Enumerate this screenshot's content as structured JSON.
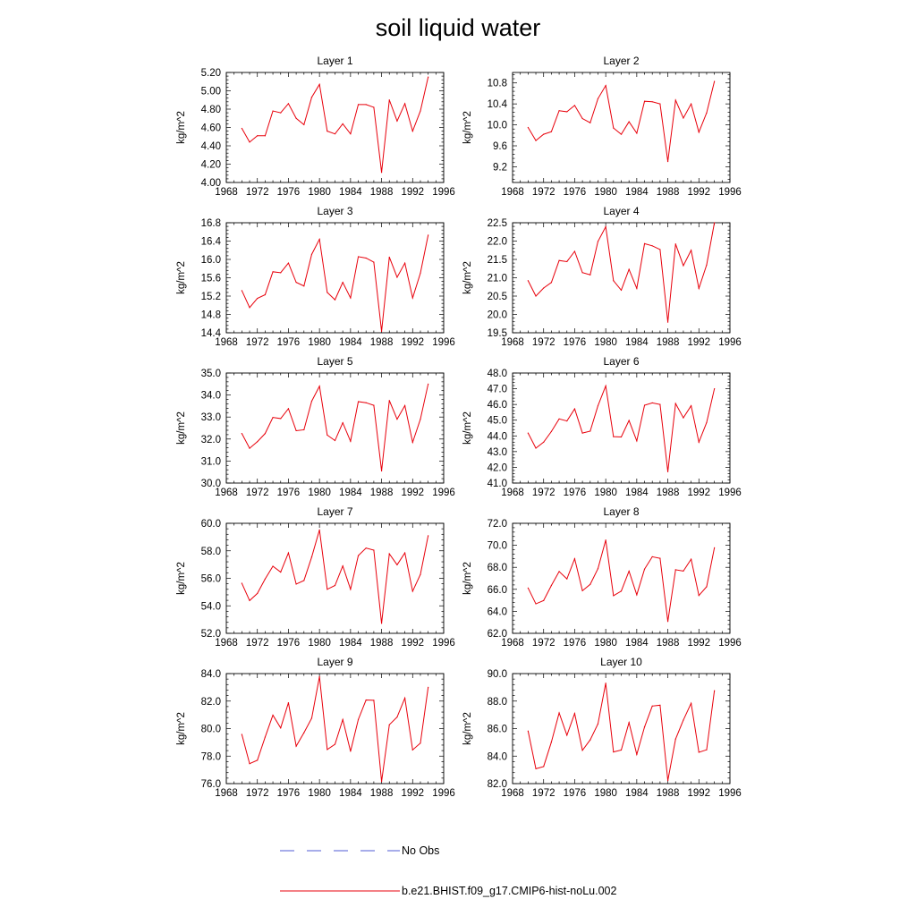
{
  "title": "soil liquid water",
  "legend": {
    "items": [
      {
        "label": "No Obs",
        "color": "#4f5bd5",
        "dash": true
      },
      {
        "label": "b.e21.BHIST.f09_g17.CMIP6-hist-noLu.002",
        "color": "#e8000b",
        "dash": false
      }
    ]
  },
  "colors": {
    "series": "#e8000b",
    "obs": "#4f5bd5"
  },
  "chart_data": [
    {
      "type": "line",
      "title": "Layer 1",
      "ylabel": "kg/m^2",
      "xlim": [
        1968,
        1996
      ],
      "xticks": [
        1968,
        1972,
        1976,
        1980,
        1984,
        1988,
        1992,
        1996
      ],
      "ylim": [
        4.0,
        5.2
      ],
      "yticks": [
        "4.00",
        "4.20",
        "4.40",
        "4.60",
        "4.80",
        "5.00",
        "5.20"
      ],
      "x": [
        1970,
        1971,
        1972,
        1973,
        1974,
        1975,
        1976,
        1977,
        1978,
        1979,
        1980,
        1981,
        1982,
        1983,
        1984,
        1985,
        1986,
        1987,
        1988,
        1989,
        1990,
        1991,
        1992,
        1993,
        1994
      ],
      "series": [
        {
          "name": "b.e21.BHIST.f09_g17.CMIP6-hist-noLu.002",
          "values": [
            4.59,
            4.44,
            4.51,
            4.51,
            4.78,
            4.76,
            4.86,
            4.7,
            4.63,
            4.93,
            5.07,
            4.56,
            4.53,
            4.64,
            4.53,
            4.85,
            4.85,
            4.82,
            4.11,
            4.9,
            4.67,
            4.86,
            4.56,
            4.78,
            5.15
          ]
        }
      ]
    },
    {
      "type": "line",
      "title": "Layer 2",
      "ylabel": "kg/m^2",
      "xlim": [
        1968,
        1996
      ],
      "xticks": [
        1968,
        1972,
        1976,
        1980,
        1984,
        1988,
        1992,
        1996
      ],
      "ylim": [
        8.9,
        11.0
      ],
      "yticks": [
        "9.2",
        "9.6",
        "10.0",
        "10.4",
        "10.8"
      ],
      "x": [
        1970,
        1971,
        1972,
        1973,
        1974,
        1975,
        1976,
        1977,
        1978,
        1979,
        1980,
        1981,
        1982,
        1983,
        1984,
        1985,
        1986,
        1987,
        1988,
        1989,
        1990,
        1991,
        1992,
        1993,
        1994
      ],
      "series": [
        {
          "name": "b.e21.BHIST.f09_g17.CMIP6-hist-noLu.002",
          "values": [
            9.95,
            9.7,
            9.82,
            9.87,
            10.27,
            10.25,
            10.37,
            10.12,
            10.04,
            10.5,
            10.75,
            9.94,
            9.82,
            10.06,
            9.84,
            10.45,
            10.44,
            10.4,
            9.3,
            10.47,
            10.13,
            10.4,
            9.86,
            10.23,
            10.83
          ]
        }
      ]
    },
    {
      "type": "line",
      "title": "Layer 3",
      "ylabel": "kg/m^2",
      "xlim": [
        1968,
        1996
      ],
      "xticks": [
        1968,
        1972,
        1976,
        1980,
        1984,
        1988,
        1992,
        1996
      ],
      "ylim": [
        14.4,
        16.8
      ],
      "yticks": [
        "14.4",
        "14.8",
        "15.2",
        "15.6",
        "16.0",
        "16.4",
        "16.8"
      ],
      "x": [
        1970,
        1971,
        1972,
        1973,
        1974,
        1975,
        1976,
        1977,
        1978,
        1979,
        1980,
        1981,
        1982,
        1983,
        1984,
        1985,
        1986,
        1987,
        1988,
        1989,
        1990,
        1991,
        1992,
        1993,
        1994
      ],
      "series": [
        {
          "name": "b.e21.BHIST.f09_g17.CMIP6-hist-noLu.002",
          "values": [
            15.32,
            14.95,
            15.15,
            15.23,
            15.73,
            15.71,
            15.92,
            15.5,
            15.42,
            16.11,
            16.44,
            15.28,
            15.12,
            15.5,
            15.16,
            16.06,
            16.03,
            15.94,
            14.43,
            16.05,
            15.61,
            15.92,
            15.16,
            15.7,
            16.53
          ]
        }
      ]
    },
    {
      "type": "line",
      "title": "Layer 4",
      "ylabel": "kg/m^2",
      "xlim": [
        1968,
        1996
      ],
      "xticks": [
        1968,
        1972,
        1976,
        1980,
        1984,
        1988,
        1992,
        1996
      ],
      "ylim": [
        19.5,
        22.5
      ],
      "yticks": [
        "19.5",
        "20.0",
        "20.5",
        "21.0",
        "21.5",
        "22.0",
        "22.5"
      ],
      "x": [
        1970,
        1971,
        1972,
        1973,
        1974,
        1975,
        1976,
        1977,
        1978,
        1979,
        1980,
        1981,
        1982,
        1983,
        1984,
        1985,
        1986,
        1987,
        1988,
        1989,
        1990,
        1991,
        1992,
        1993,
        1994
      ],
      "series": [
        {
          "name": "b.e21.BHIST.f09_g17.CMIP6-hist-noLu.002",
          "values": [
            20.92,
            20.5,
            20.72,
            20.87,
            21.47,
            21.44,
            21.72,
            21.14,
            21.08,
            21.99,
            22.39,
            20.92,
            20.66,
            21.23,
            20.71,
            21.93,
            21.87,
            21.77,
            19.79,
            21.92,
            21.33,
            21.75,
            20.71,
            21.35,
            22.5
          ]
        }
      ]
    },
    {
      "type": "line",
      "title": "Layer 5",
      "ylabel": "kg/m^2",
      "xlim": [
        1968,
        1996
      ],
      "xticks": [
        1968,
        1972,
        1976,
        1980,
        1984,
        1988,
        1992,
        1996
      ],
      "ylim": [
        30.0,
        35.0
      ],
      "yticks": [
        "30.0",
        "31.0",
        "32.0",
        "33.0",
        "34.0",
        "35.0"
      ],
      "x": [
        1970,
        1971,
        1972,
        1973,
        1974,
        1975,
        1976,
        1977,
        1978,
        1979,
        1980,
        1981,
        1982,
        1983,
        1984,
        1985,
        1986,
        1987,
        1988,
        1989,
        1990,
        1991,
        1992,
        1993,
        1994
      ],
      "series": [
        {
          "name": "b.e21.BHIST.f09_g17.CMIP6-hist-noLu.002",
          "values": [
            32.25,
            31.58,
            31.88,
            32.25,
            32.98,
            32.93,
            33.38,
            32.38,
            32.42,
            33.72,
            34.4,
            32.18,
            31.93,
            32.74,
            31.9,
            33.7,
            33.65,
            33.53,
            30.55,
            33.75,
            32.9,
            33.52,
            31.85,
            32.9,
            34.5
          ]
        }
      ]
    },
    {
      "type": "line",
      "title": "Layer 6",
      "ylabel": "kg/m^2",
      "xlim": [
        1968,
        1996
      ],
      "xticks": [
        1968,
        1972,
        1976,
        1980,
        1984,
        1988,
        1992,
        1996
      ],
      "ylim": [
        41.0,
        48.0
      ],
      "yticks": [
        "41.0",
        "42.0",
        "43.0",
        "44.0",
        "45.0",
        "46.0",
        "47.0",
        "48.0"
      ],
      "x": [
        1970,
        1971,
        1972,
        1973,
        1974,
        1975,
        1976,
        1977,
        1978,
        1979,
        1980,
        1981,
        1982,
        1983,
        1984,
        1985,
        1986,
        1987,
        1988,
        1989,
        1990,
        1991,
        1992,
        1993,
        1994
      ],
      "series": [
        {
          "name": "b.e21.BHIST.f09_g17.CMIP6-hist-noLu.002",
          "values": [
            44.18,
            43.22,
            43.6,
            44.28,
            45.08,
            44.95,
            45.72,
            44.18,
            44.3,
            45.92,
            47.18,
            43.95,
            43.93,
            44.98,
            43.68,
            45.95,
            46.1,
            46.0,
            41.72,
            46.06,
            45.15,
            45.92,
            43.6,
            44.85,
            47.0
          ]
        }
      ]
    },
    {
      "type": "line",
      "title": "Layer 7",
      "ylabel": "kg/m^2",
      "xlim": [
        1968,
        1996
      ],
      "xticks": [
        1968,
        1972,
        1976,
        1980,
        1984,
        1988,
        1992,
        1996
      ],
      "ylim": [
        52.0,
        60.0
      ],
      "yticks": [
        "52.0",
        "54.0",
        "56.0",
        "58.0",
        "60.0"
      ],
      "x": [
        1970,
        1971,
        1972,
        1973,
        1974,
        1975,
        1976,
        1977,
        1978,
        1979,
        1980,
        1981,
        1982,
        1983,
        1984,
        1985,
        1986,
        1987,
        1988,
        1989,
        1990,
        1991,
        1992,
        1993,
        1994
      ],
      "series": [
        {
          "name": "b.e21.BHIST.f09_g17.CMIP6-hist-noLu.002",
          "values": [
            55.64,
            54.38,
            54.9,
            55.95,
            56.88,
            56.45,
            57.85,
            55.58,
            55.84,
            57.55,
            59.52,
            55.2,
            55.48,
            56.9,
            55.2,
            57.65,
            58.2,
            58.05,
            52.72,
            57.78,
            56.98,
            57.85,
            55.06,
            56.28,
            59.1
          ]
        }
      ]
    },
    {
      "type": "line",
      "title": "Layer 8",
      "ylabel": "kg/m^2",
      "xlim": [
        1968,
        1996
      ],
      "xticks": [
        1968,
        1972,
        1976,
        1980,
        1984,
        1988,
        1992,
        1996
      ],
      "ylim": [
        62.0,
        72.0
      ],
      "yticks": [
        "62.0",
        "64.0",
        "66.0",
        "68.0",
        "70.0",
        "72.0"
      ],
      "x": [
        1970,
        1971,
        1972,
        1973,
        1974,
        1975,
        1976,
        1977,
        1978,
        1979,
        1980,
        1981,
        1982,
        1983,
        1984,
        1985,
        1986,
        1987,
        1988,
        1989,
        1990,
        1991,
        1992,
        1993,
        1994
      ],
      "series": [
        {
          "name": "b.e21.BHIST.f09_g17.CMIP6-hist-noLu.002",
          "values": [
            66.12,
            64.68,
            64.98,
            66.35,
            67.62,
            66.95,
            68.78,
            65.87,
            66.45,
            67.88,
            70.48,
            65.42,
            65.84,
            67.65,
            65.5,
            67.84,
            68.96,
            68.82,
            63.08,
            67.78,
            67.66,
            68.74,
            65.44,
            66.24,
            69.78
          ]
        }
      ]
    },
    {
      "type": "line",
      "title": "Layer 9",
      "ylabel": "kg/m^2",
      "xlim": [
        1968,
        1996
      ],
      "xticks": [
        1968,
        1972,
        1976,
        1980,
        1984,
        1988,
        1992,
        1996
      ],
      "ylim": [
        76.0,
        84.0
      ],
      "yticks": [
        "76.0",
        "78.0",
        "80.0",
        "82.0",
        "84.0"
      ],
      "x": [
        1970,
        1971,
        1972,
        1973,
        1974,
        1975,
        1976,
        1977,
        1978,
        1979,
        1980,
        1981,
        1982,
        1983,
        1984,
        1985,
        1986,
        1987,
        1988,
        1989,
        1990,
        1991,
        1992,
        1993,
        1994
      ],
      "series": [
        {
          "name": "b.e21.BHIST.f09_g17.CMIP6-hist-noLu.002",
          "values": [
            79.58,
            77.45,
            77.7,
            79.38,
            80.98,
            80.05,
            81.88,
            78.72,
            79.7,
            80.76,
            83.78,
            78.48,
            78.86,
            80.66,
            78.35,
            80.66,
            82.08,
            82.06,
            76.15,
            80.28,
            80.84,
            82.22,
            78.45,
            78.94,
            83.0
          ]
        }
      ]
    },
    {
      "type": "line",
      "title": "Layer 10",
      "ylabel": "kg/m^2",
      "xlim": [
        1968,
        1996
      ],
      "xticks": [
        1968,
        1972,
        1976,
        1980,
        1984,
        1988,
        1992,
        1996
      ],
      "ylim": [
        82.0,
        90.0
      ],
      "yticks": [
        "82.0",
        "84.0",
        "86.0",
        "88.0",
        "90.0"
      ],
      "x": [
        1970,
        1971,
        1972,
        1973,
        1974,
        1975,
        1976,
        1977,
        1978,
        1979,
        1980,
        1981,
        1982,
        1983,
        1984,
        1985,
        1986,
        1987,
        1988,
        1989,
        1990,
        1991,
        1992,
        1993,
        1994
      ],
      "series": [
        {
          "name": "b.e21.BHIST.f09_g17.CMIP6-hist-noLu.002",
          "values": [
            85.82,
            83.08,
            83.24,
            85.02,
            87.14,
            85.52,
            87.1,
            84.42,
            85.18,
            86.34,
            89.3,
            84.3,
            84.44,
            86.44,
            84.12,
            86.12,
            87.64,
            87.7,
            82.22,
            85.24,
            86.62,
            87.84,
            84.28,
            84.46,
            88.76
          ]
        }
      ]
    }
  ]
}
